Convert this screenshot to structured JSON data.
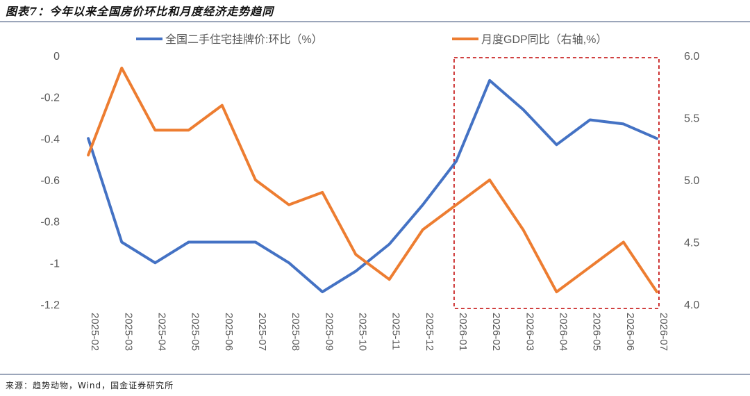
{
  "header": {
    "title": "图表7：今年以来全国房价环比和月度经济走势趋同"
  },
  "footer": {
    "source": "来源：趋势动物，Wind，国金证券研究所"
  },
  "colors": {
    "series1": "#4472c4",
    "series2": "#ed7d31",
    "highlight": "#c00000",
    "axis_text": "#595959",
    "rule": "#1f3864"
  },
  "chart_data": {
    "type": "line",
    "title": "",
    "categories": [
      "2025-02",
      "2025-03",
      "2025-04",
      "2025-05",
      "2025-06",
      "2025-07",
      "2025-08",
      "2025-09",
      "2025-10",
      "2025-11",
      "2025-12",
      "2026-01",
      "2026-02",
      "2026-03",
      "2026-04",
      "2026-05",
      "2026-06",
      "2026-07"
    ],
    "series": [
      {
        "name": "全国二手住宅挂牌价:环比（%）",
        "axis": "left",
        "color": "#4472c4",
        "values": [
          -0.4,
          -0.9,
          -1.0,
          -0.9,
          -0.9,
          -0.9,
          -1.0,
          -1.14,
          -1.04,
          -0.91,
          -0.72,
          -0.51,
          -0.12,
          -0.26,
          -0.43,
          -0.31,
          -0.33,
          -0.4
        ]
      },
      {
        "name": "月度GDP同比（右轴,%）",
        "axis": "right",
        "color": "#ed7d31",
        "values": [
          5.2,
          5.9,
          5.4,
          5.4,
          5.6,
          5.0,
          4.8,
          4.9,
          4.4,
          4.2,
          4.6,
          4.8,
          5.0,
          4.6,
          4.1,
          4.3,
          4.5,
          4.1
        ]
      }
    ],
    "y_left": {
      "ylim": [
        -1.2,
        0
      ],
      "ticks": [
        "0",
        "-0.2",
        "-0.4",
        "-0.6",
        "-0.8",
        "-1",
        "-1.2"
      ],
      "tick_values": [
        0,
        -0.2,
        -0.4,
        -0.6,
        -0.8,
        -1.0,
        -1.2
      ]
    },
    "y_right": {
      "ylim": [
        4.0,
        6.0
      ],
      "ticks": [
        "6.0",
        "5.5",
        "5.0",
        "4.5",
        "4.0"
      ],
      "tick_values": [
        6.0,
        5.5,
        5.0,
        4.5,
        4.0
      ]
    },
    "highlight": {
      "from": "2026-01",
      "to": "2026-07",
      "style": "red dashed box"
    },
    "grid": false,
    "legend": "top-center"
  }
}
